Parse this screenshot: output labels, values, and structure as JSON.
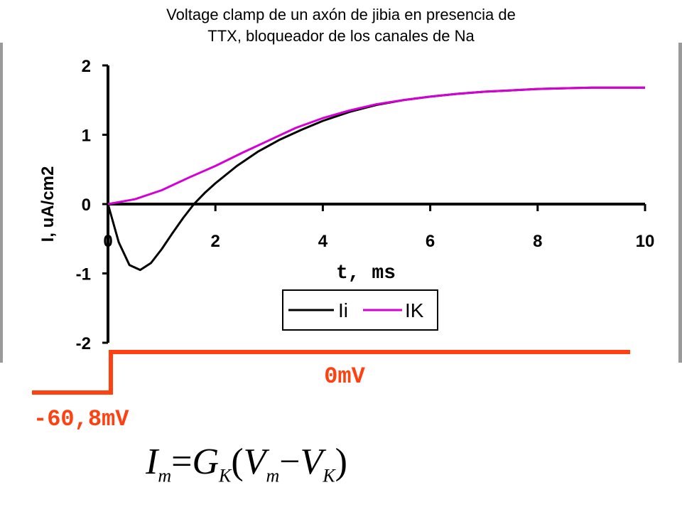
{
  "title_lines": [
    "Voltage clamp de un axón de jibia en presencia de",
    "TTX, bloqueador de los canales de Na"
  ],
  "colors": {
    "li": "#000000",
    "lk": "#d400d4",
    "step": "#ff4010",
    "axis": "#000000"
  },
  "chart_data": {
    "type": "line",
    "xlabel": "t, ms",
    "ylabel": "I, uA/cm2",
    "xlim": [
      0,
      10
    ],
    "ylim": [
      -2,
      2
    ],
    "xticks": [
      "0",
      "2",
      "4",
      "6",
      "8",
      "10"
    ],
    "yticks": [
      "2",
      "1",
      "0",
      "-1",
      "-2"
    ],
    "grid": false,
    "legend_position": "bottom-right",
    "series": [
      {
        "name": "Ii",
        "color": "#000000",
        "x": [
          0,
          0.2,
          0.4,
          0.6,
          0.8,
          1.0,
          1.2,
          1.4,
          1.6,
          1.8,
          2.0,
          2.4,
          2.8,
          3.2,
          3.6,
          4.0,
          4.5,
          5.0,
          5.5,
          6.0,
          6.5,
          7.0,
          7.5,
          8.0,
          8.5,
          9.0,
          9.5,
          10.0
        ],
        "y": [
          0,
          -0.55,
          -0.88,
          -0.95,
          -0.85,
          -0.65,
          -0.42,
          -0.2,
          0.0,
          0.16,
          0.3,
          0.55,
          0.76,
          0.93,
          1.07,
          1.2,
          1.33,
          1.43,
          1.5,
          1.55,
          1.59,
          1.62,
          1.64,
          1.66,
          1.67,
          1.68,
          1.68,
          1.68
        ]
      },
      {
        "name": "IK",
        "color": "#d400d4",
        "x": [
          0,
          0.5,
          1.0,
          1.5,
          2.0,
          2.5,
          3.0,
          3.5,
          4.0,
          4.5,
          5.0,
          5.5,
          6.0,
          6.5,
          7.0,
          7.5,
          8.0,
          8.5,
          9.0,
          9.5,
          10.0
        ],
        "y": [
          0,
          0.07,
          0.2,
          0.38,
          0.55,
          0.74,
          0.92,
          1.1,
          1.24,
          1.35,
          1.44,
          1.5,
          1.55,
          1.59,
          1.62,
          1.64,
          1.66,
          1.67,
          1.68,
          1.68,
          1.68
        ]
      }
    ]
  },
  "voltage_step": {
    "low_label": "-60,8mV",
    "high_label": "0mV"
  },
  "formula": {
    "lhs": "I",
    "lhs_sub": "m",
    "eq": "=",
    "g": "G",
    "g_sub": "K",
    "open": "(",
    "v1": "V",
    "v1_sub": "m",
    "minus": "−",
    "v2": "V",
    "v2_sub": "K",
    "close": ")"
  }
}
